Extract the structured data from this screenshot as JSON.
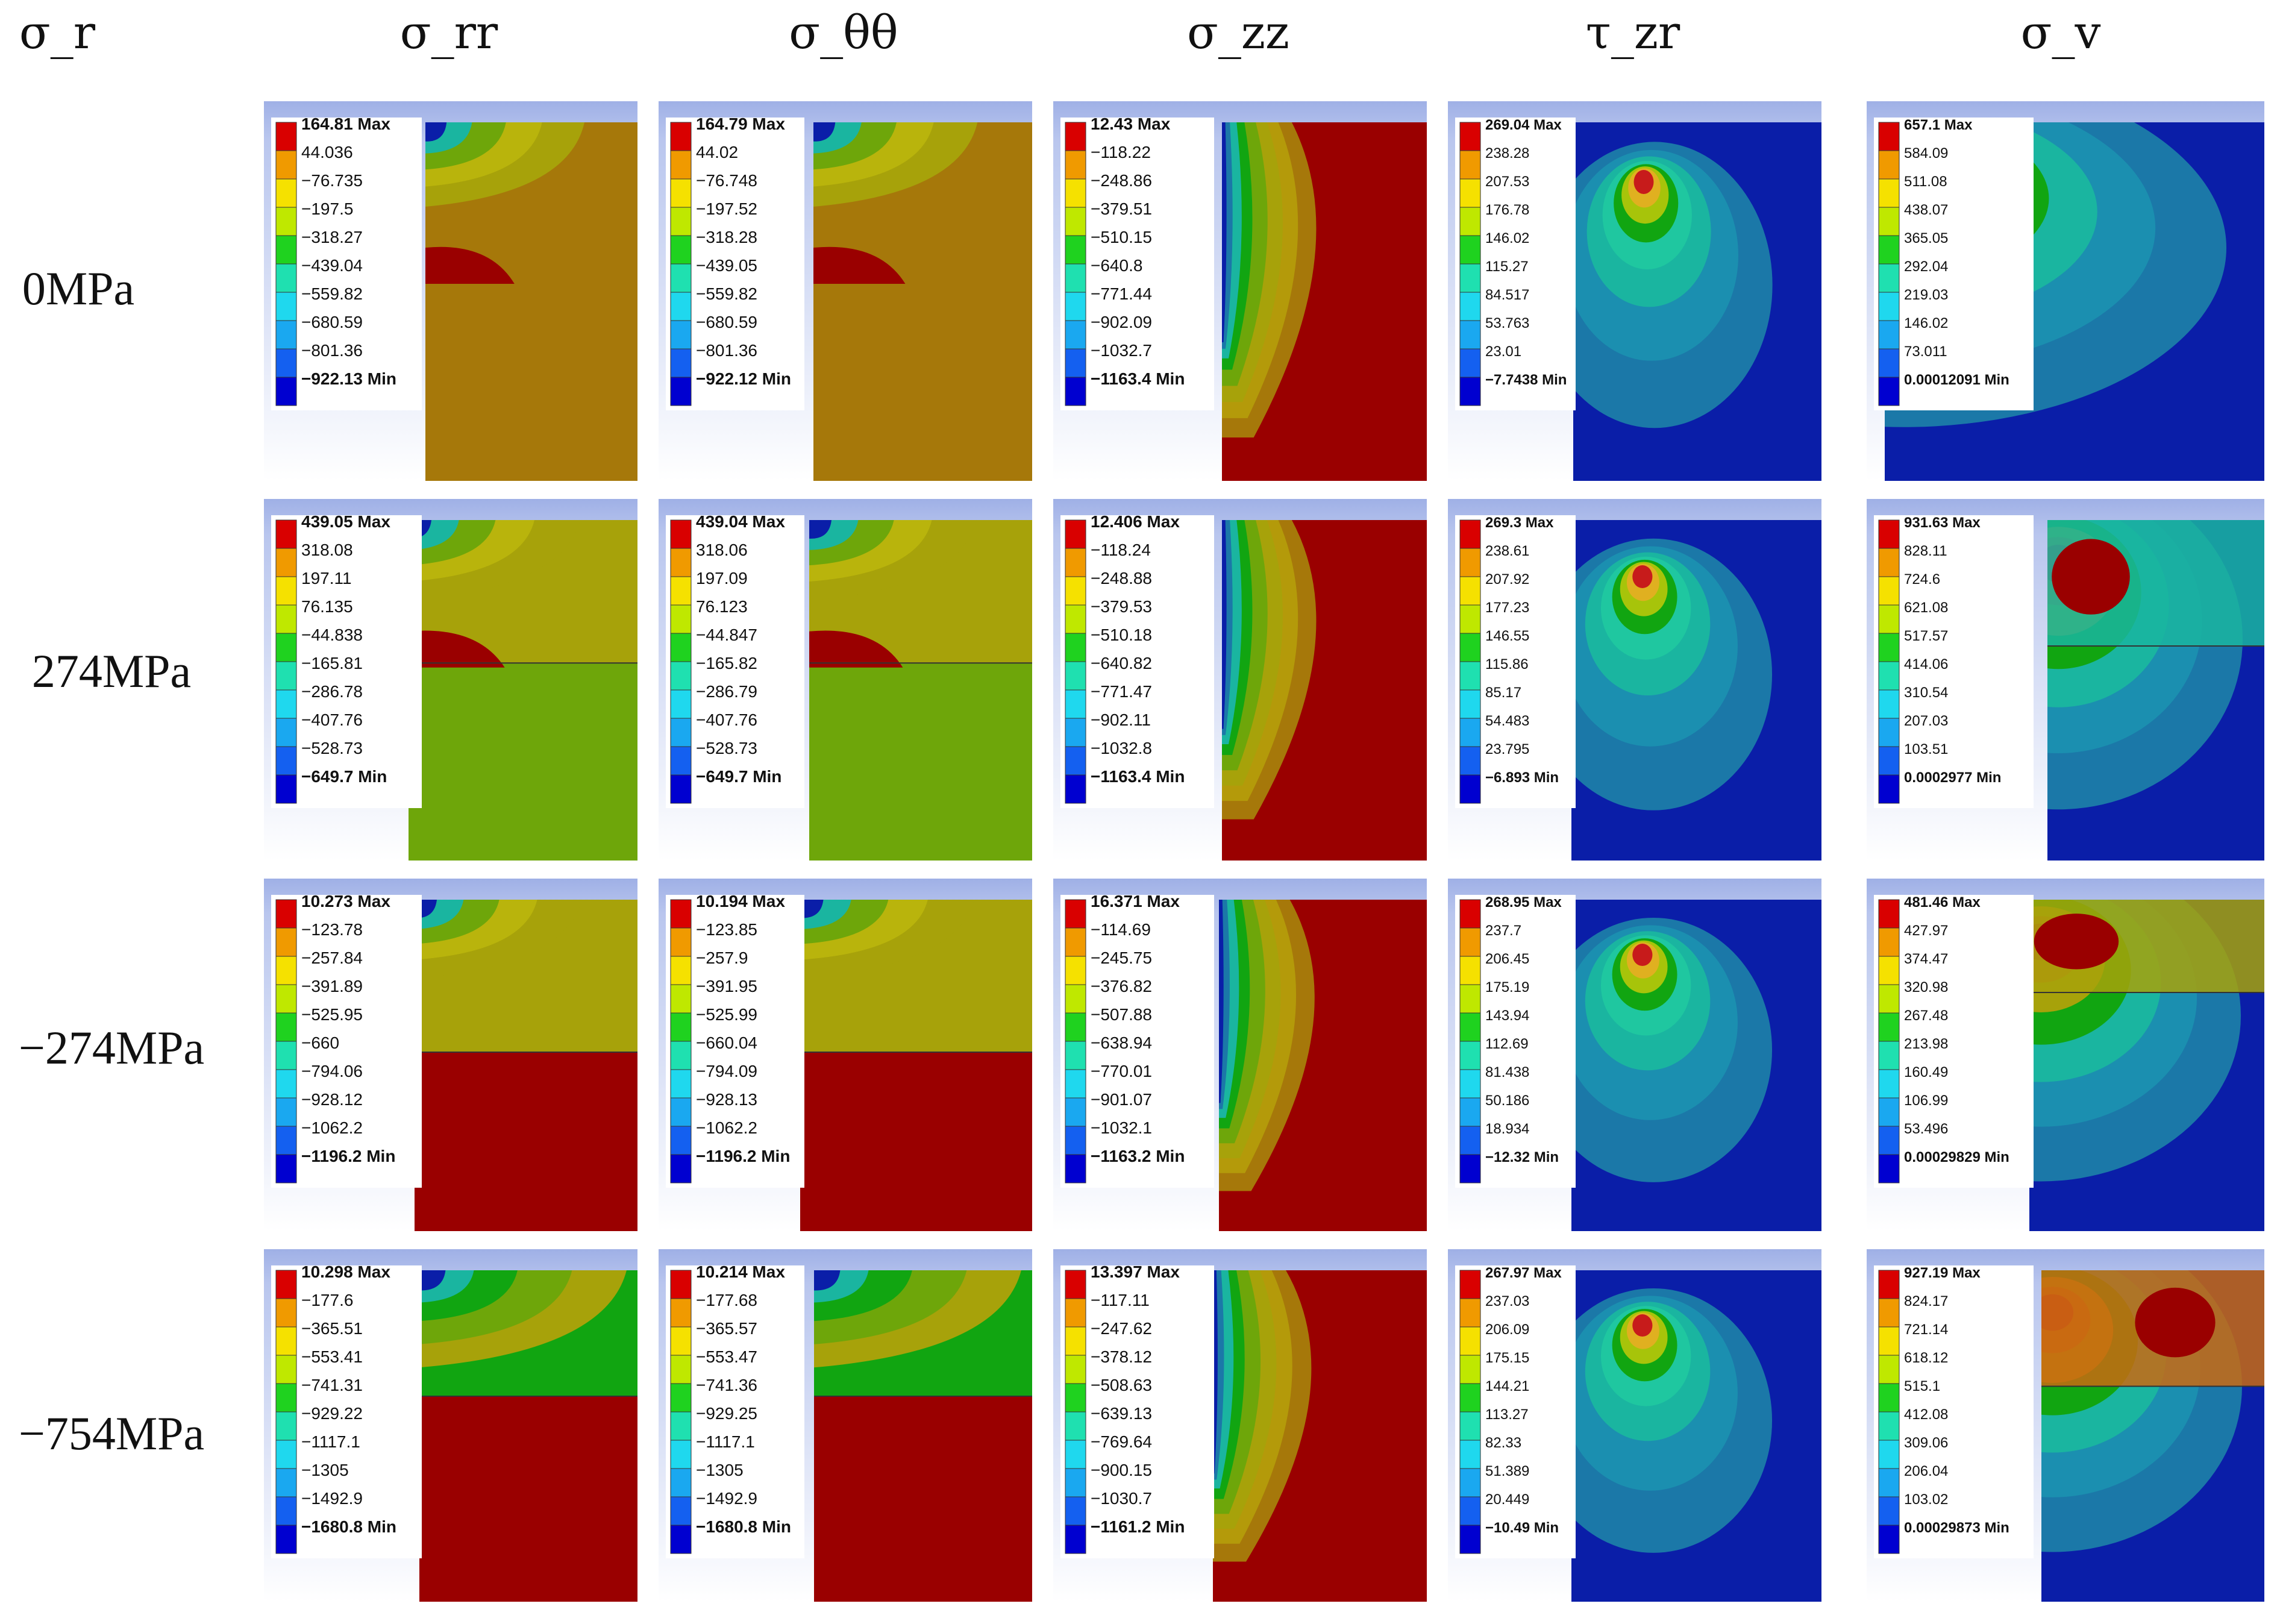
{
  "figure": {
    "column_headers": [
      "σ_r",
      "σ_rr",
      "σ_θθ",
      "σ_zz",
      "τ_zr",
      "σ_v"
    ],
    "row_labels": [
      "0MPa",
      "274MPa",
      "−274MPa",
      "−754MPa"
    ],
    "legend_colors": [
      "#d90000",
      "#f09a00",
      "#f5e100",
      "#bfe800",
      "#1fd21f",
      "#1fe0b0",
      "#1fd8ee",
      "#1aa8f0",
      "#1460f0",
      "#0000d0"
    ],
    "palette": {
      "dark_red": "#9a0000",
      "red": "#c71b1b",
      "orange": "#c96a12",
      "brown_orange": "#a6780a",
      "olive": "#a7a20a",
      "yellow_green": "#6ea60a",
      "green": "#11a511",
      "teal": "#1ab5a0",
      "cyan": "#1aa2b5",
      "steel_blue": "#1b78a8",
      "blue": "#0f46b8",
      "navy": "#0a1ea8"
    },
    "rows": [
      {
        "label": "0MPa",
        "panels": [
          {
            "type": "rr",
            "legend": [
              "164.81 Max",
              "44.036",
              "−76.735",
              "−197.5",
              "−318.27",
              "−439.04",
              "−559.82",
              "−680.59",
              "−801.36",
              "−922.13 Min"
            ]
          },
          {
            "type": "tt",
            "legend": [
              "164.79 Max",
              "44.02",
              "−76.748",
              "−197.52",
              "−318.28",
              "−439.05",
              "−559.82",
              "−680.59",
              "−801.36",
              "−922.12 Min"
            ]
          },
          {
            "type": "zz",
            "legend": [
              "12.43 Max",
              "−118.22",
              "−248.86",
              "−379.51",
              "−510.15",
              "−640.8",
              "−771.44",
              "−902.09",
              "−1032.7",
              "−1163.4 Min"
            ]
          },
          {
            "type": "tzr",
            "legend": [
              "269.04 Max",
              "238.28",
              "207.53",
              "176.78",
              "146.02",
              "115.27",
              "84.517",
              "53.763",
              "23.01",
              "−7.7438 Min"
            ]
          },
          {
            "type": "v",
            "legend": [
              "657.1 Max",
              "584.09",
              "511.08",
              "438.07",
              "365.05",
              "292.04",
              "219.03",
              "146.02",
              "73.011",
              "0.00012091 Min"
            ]
          }
        ]
      },
      {
        "label": "274MPa",
        "panels": [
          {
            "type": "rr",
            "legend": [
              "439.05 Max",
              "318.08",
              "197.11",
              "76.135",
              "−44.838",
              "−165.81",
              "−286.78",
              "−407.76",
              "−528.73",
              "−649.7 Min"
            ]
          },
          {
            "type": "tt",
            "legend": [
              "439.04 Max",
              "318.06",
              "197.09",
              "76.123",
              "−44.847",
              "−165.82",
              "−286.79",
              "−407.76",
              "−528.73",
              "−649.7 Min"
            ]
          },
          {
            "type": "zz",
            "legend": [
              "12.406 Max",
              "−118.24",
              "−248.88",
              "−379.53",
              "−510.18",
              "−640.82",
              "−771.47",
              "−902.11",
              "−1032.8",
              "−1163.4 Min"
            ]
          },
          {
            "type": "tzr",
            "legend": [
              "269.3 Max",
              "238.61",
              "207.92",
              "177.23",
              "146.55",
              "115.86",
              "85.17",
              "54.483",
              "23.795",
              "−6.893 Min"
            ]
          },
          {
            "type": "v",
            "legend": [
              "931.63 Max",
              "828.11",
              "724.6",
              "621.08",
              "517.57",
              "414.06",
              "310.54",
              "207.03",
              "103.51",
              "0.0002977 Min"
            ]
          }
        ]
      },
      {
        "label": "−274MPa",
        "panels": [
          {
            "type": "rr",
            "legend": [
              "10.273 Max",
              "−123.78",
              "−257.84",
              "−391.89",
              "−525.95",
              "−660",
              "−794.06",
              "−928.12",
              "−1062.2",
              "−1196.2 Min"
            ]
          },
          {
            "type": "tt",
            "legend": [
              "10.194 Max",
              "−123.85",
              "−257.9",
              "−391.95",
              "−525.99",
              "−660.04",
              "−794.09",
              "−928.13",
              "−1062.2",
              "−1196.2 Min"
            ]
          },
          {
            "type": "zz",
            "legend": [
              "16.371 Max",
              "−114.69",
              "−245.75",
              "−376.82",
              "−507.88",
              "−638.94",
              "−770.01",
              "−901.07",
              "−1032.1",
              "−1163.2 Min"
            ]
          },
          {
            "type": "tzr",
            "legend": [
              "268.95 Max",
              "237.7",
              "206.45",
              "175.19",
              "143.94",
              "112.69",
              "81.438",
              "50.186",
              "18.934",
              "−12.32 Min"
            ]
          },
          {
            "type": "v",
            "legend": [
              "481.46 Max",
              "427.97",
              "374.47",
              "320.98",
              "267.48",
              "213.98",
              "160.49",
              "106.99",
              "53.496",
              "0.00029829 Min"
            ]
          }
        ]
      },
      {
        "label": "−754MPa",
        "panels": [
          {
            "type": "rr",
            "legend": [
              "10.298 Max",
              "−177.6",
              "−365.51",
              "−553.41",
              "−741.31",
              "−929.22",
              "−1117.1",
              "−1305",
              "−1492.9",
              "−1680.8 Min"
            ]
          },
          {
            "type": "tt",
            "legend": [
              "10.214 Max",
              "−177.68",
              "−365.57",
              "−553.47",
              "−741.36",
              "−929.25",
              "−1117.1",
              "−1305",
              "−1492.9",
              "−1680.8 Min"
            ]
          },
          {
            "type": "zz",
            "legend": [
              "13.397 Max",
              "−117.11",
              "−247.62",
              "−378.12",
              "−508.63",
              "−639.13",
              "−769.64",
              "−900.15",
              "−1030.7",
              "−1161.2 Min"
            ]
          },
          {
            "type": "tzr",
            "legend": [
              "267.97 Max",
              "237.03",
              "206.09",
              "175.15",
              "144.21",
              "113.27",
              "82.33",
              "51.389",
              "20.449",
              "−10.49 Min"
            ]
          },
          {
            "type": "v",
            "legend": [
              "927.19 Max",
              "824.17",
              "721.14",
              "618.12",
              "515.1",
              "412.08",
              "309.06",
              "206.04",
              "103.02",
              "0.00029873 Min"
            ]
          }
        ]
      }
    ]
  }
}
